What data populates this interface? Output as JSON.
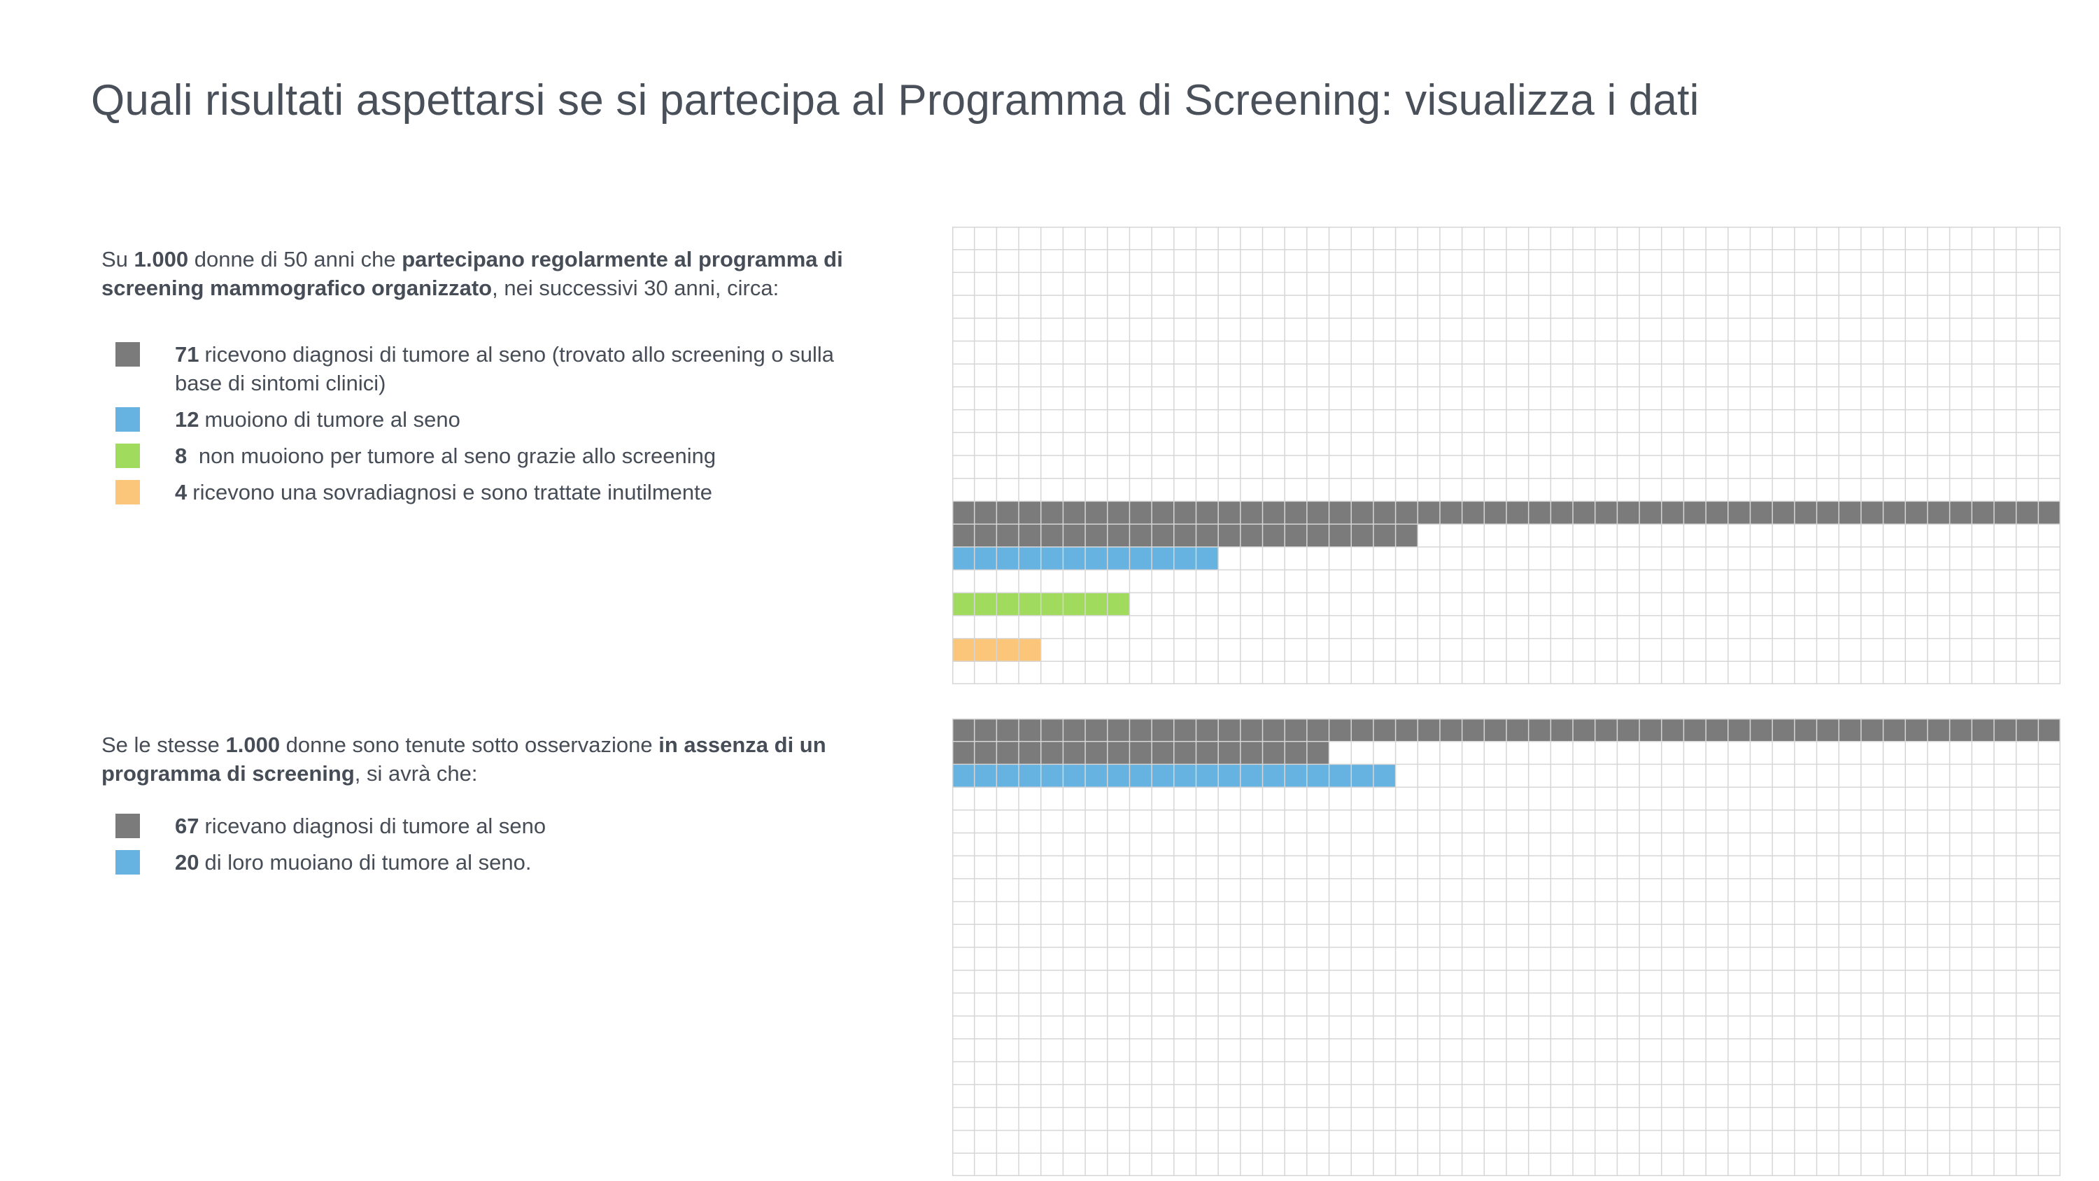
{
  "title": "Quali risultati aspettarsi se si partecipa al Programma di Screening: visualizza i dati",
  "colors": {
    "gray": "#7b7b7b",
    "blue": "#66b2e0",
    "green": "#a0db5e",
    "orange": "#fbc57a",
    "grid_line": "#d6d6d6",
    "text": "#474d57"
  },
  "sections": [
    {
      "intro": {
        "p1": "Su ",
        "b1": "1.000",
        "p2": " donne di 50 anni che ",
        "b2": "partecipano regolarmente al programma di screening mammografico organizzato",
        "p3": ", nei successivi 30 anni, circa:"
      },
      "legend": [
        {
          "count": "71",
          "text": "ricevono diagnosi di tumore al seno (trovato allo screening o sulla base di sintomi clinici)",
          "color": "#7b7b7b"
        },
        {
          "count": "12",
          "text": "muoiono di tumore al seno",
          "color": "#66b2e0"
        },
        {
          "count": "8",
          "text": " non muoiono per tumore al seno grazie allo screening",
          "color": "#a0db5e"
        },
        {
          "count": "4",
          "text": "ricevono una sovradiagnosi e sono trattate inutilmente",
          "color": "#fbc57a"
        }
      ]
    },
    {
      "intro": {
        "p1": "Se le stesse ",
        "b1": "1.000",
        "p2": " donne sono tenute sotto osservazione ",
        "b2": "in assenza di un programma di screening",
        "p3": ", si avrà che:"
      },
      "legend": [
        {
          "count": "67",
          "text": "ricevano diagnosi di tumore al seno",
          "color": "#7b7b7b"
        },
        {
          "count": "20",
          "text": "di loro muoiano di tumore al seno.",
          "color": "#66b2e0"
        }
      ]
    }
  ],
  "chart_data": [
    {
      "type": "waffle",
      "total": 1000,
      "units_per_row": 50,
      "rows_per_grid": 20,
      "series": [
        {
          "value": 71,
          "color": "#7b7b7b",
          "start_row": 12
        },
        {
          "value": 12,
          "color": "#66b2e0",
          "start_row": 14
        },
        {
          "value": 8,
          "color": "#a0db5e",
          "start_row": 16
        },
        {
          "value": 4,
          "color": "#fbc57a",
          "start_row": 18
        }
      ]
    },
    {
      "type": "waffle",
      "total": 1000,
      "units_per_row": 50,
      "rows_per_grid": 20,
      "series": [
        {
          "value": 67,
          "color": "#7b7b7b",
          "start_row": 0
        },
        {
          "value": 20,
          "color": "#66b2e0",
          "start_row": 2
        }
      ]
    }
  ]
}
